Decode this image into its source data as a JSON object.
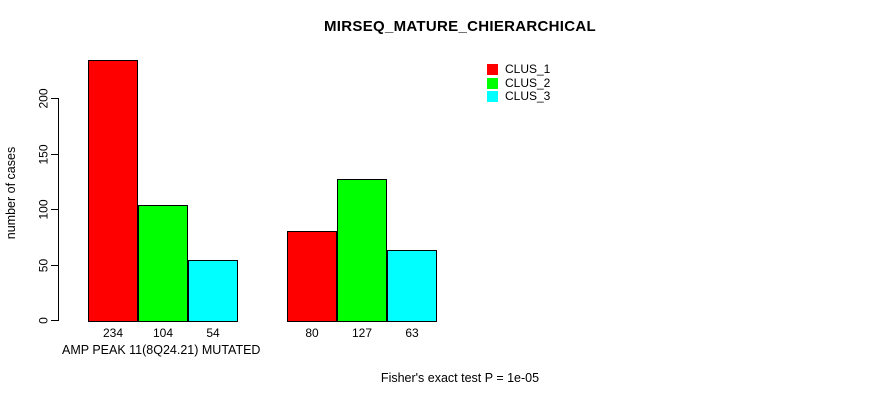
{
  "chart_data": {
    "type": "bar",
    "title": "MIRSEQ_MATURE_CHIERARCHICAL",
    "ylabel": "number of cases",
    "xlabel": "AMP PEAK 11(8Q24.21) MUTATED",
    "categories": [
      "AMP PEAK 11(8Q24.21) MUTATED",
      ""
    ],
    "series": [
      {
        "name": "CLUS_1",
        "color": "#ff0000",
        "values": [
          234,
          80
        ]
      },
      {
        "name": "CLUS_2",
        "color": "#00ff00",
        "values": [
          104,
          127
        ]
      },
      {
        "name": "CLUS_3",
        "color": "#00ffff",
        "values": [
          54,
          63
        ]
      }
    ],
    "yticks": [
      0,
      50,
      100,
      150,
      200
    ],
    "ylim": [
      0,
      240
    ],
    "grid": false,
    "legend_position": "top-right",
    "value_labels_shown": true,
    "annotation": "Fisher's exact test P = 1e-05"
  }
}
